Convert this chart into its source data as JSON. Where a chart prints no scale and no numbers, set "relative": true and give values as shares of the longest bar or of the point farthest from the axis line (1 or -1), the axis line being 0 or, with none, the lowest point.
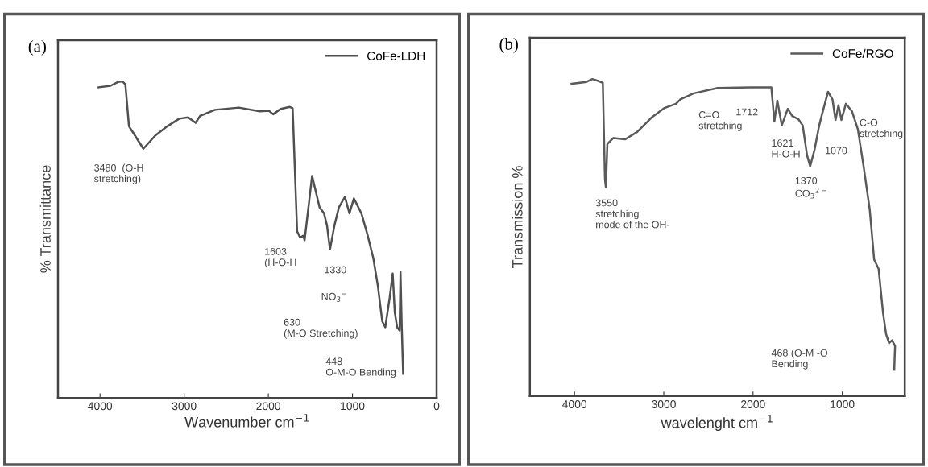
{
  "chart_data": [
    {
      "type": "line",
      "title": "(a)",
      "xlabel": "Wavenumber cm$^{−1}$",
      "ylabel": "% Transmittance",
      "relative": true,
      "legend": "top right",
      "grid": false,
      "xlim": [
        4500,
        0
      ],
      "xticks": [
        4000,
        3000,
        2000,
        1000,
        0
      ],
      "series": [
        {
          "name": "CoFe-LDH",
          "color": "#505050",
          "x": [
            4018,
            3876,
            3787,
            3734,
            3699,
            3656,
            3610,
            3485,
            3343,
            3201,
            3059,
            2953,
            2864,
            2811,
            2634,
            2350,
            2101,
            1995,
            1942,
            1853,
            1746,
            1711,
            1658,
            1622,
            1586,
            1569,
            1480,
            1391,
            1338,
            1303,
            1267,
            1214,
            1161,
            1090,
            1036,
            983,
            894,
            823,
            752,
            699,
            646,
            610,
            557,
            522,
            497,
            469,
            440,
            429,
            415,
            398
          ],
          "values": [
            0.981,
            0.986,
            0.998,
            1.0,
            0.99,
            0.858,
            0.839,
            0.787,
            0.829,
            0.858,
            0.882,
            0.886,
            0.869,
            0.891,
            0.91,
            0.917,
            0.905,
            0.907,
            0.896,
            0.913,
            0.919,
            0.915,
            0.526,
            0.507,
            0.512,
            0.498,
            0.701,
            0.602,
            0.583,
            0.545,
            0.469,
            0.545,
            0.602,
            0.635,
            0.583,
            0.63,
            0.583,
            0.517,
            0.441,
            0.355,
            0.242,
            0.223,
            0.318,
            0.393,
            0.27,
            0.223,
            0.213,
            0.398,
            0.232,
            0.076
          ]
        }
      ],
      "annotations": [
        "3480  (O-H\nstretching)",
        "1603\n(H-O-H",
        "1330",
        "NO$_{3}$$^{−}$",
        "630\n(M-O Stretching)",
        "448\nO-M-O Bending"
      ]
    },
    {
      "type": "line",
      "title": "(b)",
      "xlabel": "wavelenght cm$^{−1}$",
      "ylabel": "Transmission %",
      "relative": true,
      "legend": "top right",
      "grid": false,
      "xlim": [
        4500,
        300
      ],
      "xticks": [
        4000,
        3000,
        2000,
        1000
      ],
      "series": [
        {
          "name": "CoFe/RGO",
          "color": "#5a5a5a",
          "x": [
            4033,
            3866,
            3800,
            3733,
            3683,
            3659,
            3649,
            3632,
            3566,
            3432,
            3298,
            3131,
            2998,
            2864,
            2814,
            2664,
            2396,
            2029,
            1795,
            1761,
            1728,
            1678,
            1611,
            1561,
            1494,
            1444,
            1394,
            1360,
            1311,
            1260,
            1227,
            1160,
            1110,
            1076,
            1043,
            1010,
            960,
            893,
            826,
            759,
            693,
            643,
            593,
            543,
            509,
            476,
            443,
            409,
            418
          ],
          "values": [
            0.985,
            0.991,
            1.0,
            0.994,
            0.988,
            0.683,
            0.659,
            0.795,
            0.814,
            0.81,
            0.833,
            0.88,
            0.908,
            0.922,
            0.936,
            0.955,
            0.972,
            0.974,
            0.974,
            0.866,
            0.932,
            0.854,
            0.906,
            0.883,
            0.874,
            0.854,
            0.758,
            0.725,
            0.777,
            0.852,
            0.889,
            0.96,
            0.936,
            0.871,
            0.917,
            0.871,
            0.922,
            0.899,
            0.842,
            0.72,
            0.589,
            0.43,
            0.401,
            0.261,
            0.195,
            0.167,
            0.176,
            0.158,
            0.083
          ]
        }
      ],
      "annotations": [
        "3550\nstretching\nmode of the OH-",
        "C=O\nstretching",
        "1712",
        "1621\nH-O-H",
        "1370\nCO$_{3}$$^{2−}$",
        "1070",
        "C-O\nstretching",
        "468 (O-M -O\nBending"
      ]
    }
  ]
}
